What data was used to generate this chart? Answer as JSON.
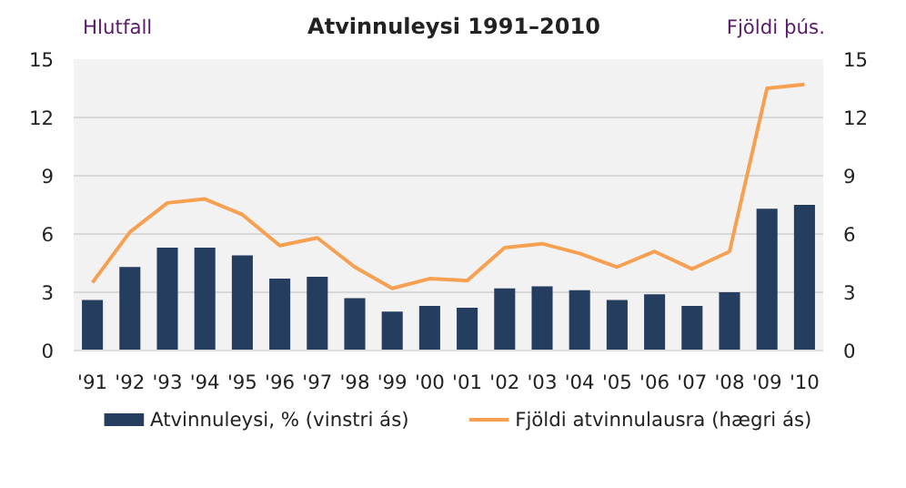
{
  "chart_data": {
    "type": "bar",
    "title": "Atvinnuleysi 1991–2010",
    "ylabel": "Hlutfall",
    "y2label": "Fjöldi þús.",
    "categories": [
      "'91",
      "'92",
      "'93",
      "'94",
      "'95",
      "'96",
      "'97",
      "'98",
      "'99",
      "'00",
      "'01",
      "'02",
      "'03",
      "'04",
      "'05",
      "'06",
      "'07",
      "'08",
      "'09",
      "'10"
    ],
    "series": [
      {
        "name": "Atvinnuleysi, %  (vinstri ás)",
        "color": "#253d5e",
        "values": [
          2.6,
          4.3,
          5.3,
          5.3,
          4.9,
          3.7,
          3.8,
          2.7,
          2.0,
          2.3,
          2.2,
          3.2,
          3.3,
          3.1,
          2.6,
          2.9,
          2.3,
          3.0,
          7.3,
          7.5
        ]
      },
      {
        "name": "Fjöldi atvinnulausra (hægri ás)",
        "type": "line",
        "axis": "y2",
        "color": "#f7a052",
        "values": [
          3.5,
          6.1,
          7.6,
          7.8,
          7.0,
          5.4,
          5.8,
          4.3,
          3.2,
          3.7,
          3.6,
          5.3,
          5.5,
          5.0,
          4.3,
          5.1,
          4.2,
          5.1,
          13.5,
          13.7
        ]
      }
    ],
    "ylim": [
      0,
      15
    ],
    "yticks": [
      0,
      3,
      6,
      9,
      12,
      15
    ],
    "y2lim": [
      0,
      15
    ],
    "y2ticks": [
      0,
      3,
      6,
      9,
      12,
      15
    ],
    "grid": "y",
    "legend": "bottom"
  }
}
